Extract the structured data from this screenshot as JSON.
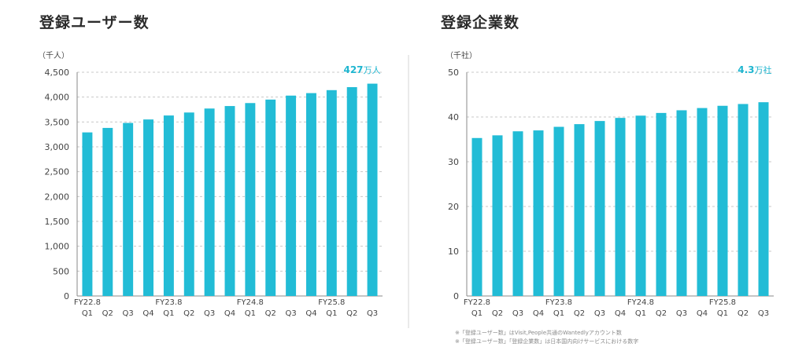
{
  "colors": {
    "bar": "#22bcd6",
    "annotation": "#1fb6d0",
    "grid": "#c8c8c8",
    "axis": "#888888"
  },
  "notes": [
    "※「登録ユーザー数」はVisit,People共通のWantedlyアカウント数",
    "※「登録ユーザー数」「登録企業数」は日本国内向けサービスにおける数字"
  ],
  "chart_data": [
    {
      "type": "bar",
      "title": "登録ユーザー数",
      "unit_label": "（千人）",
      "categories": [
        "Q1",
        "Q2",
        "Q3",
        "Q4",
        "Q1",
        "Q2",
        "Q3",
        "Q4",
        "Q1",
        "Q2",
        "Q3",
        "Q4",
        "Q1",
        "Q2",
        "Q3"
      ],
      "fy_labels": [
        "FY22.8",
        "",
        "",
        "",
        "FY23.8",
        "",
        "",
        "",
        "FY24.8",
        "",
        "",
        "",
        "FY25.8",
        "",
        ""
      ],
      "values": [
        3290,
        3380,
        3480,
        3550,
        3630,
        3690,
        3770,
        3820,
        3880,
        3950,
        4030,
        4080,
        4140,
        4200,
        4270
      ],
      "ylim": [
        0,
        4500
      ],
      "yticks": [
        "0",
        "500",
        "1,000",
        "1,500",
        "2,000",
        "2,500",
        "3,000",
        "3,500",
        "4,000",
        "4,500"
      ],
      "grid": "dashed horizontal",
      "annotation": {
        "value": "427",
        "unit": "万人"
      }
    },
    {
      "type": "bar",
      "title": "登録企業数",
      "unit_label": "（千社）",
      "categories": [
        "Q1",
        "Q2",
        "Q3",
        "Q4",
        "Q1",
        "Q2",
        "Q3",
        "Q4",
        "Q1",
        "Q2",
        "Q3",
        "Q4",
        "Q1",
        "Q2",
        "Q3"
      ],
      "fy_labels": [
        "FY22.8",
        "",
        "",
        "",
        "FY23.8",
        "",
        "",
        "",
        "FY24.8",
        "",
        "",
        "",
        "FY25.8",
        "",
        ""
      ],
      "values": [
        35.3,
        35.9,
        36.8,
        37.0,
        37.8,
        38.4,
        39.1,
        39.8,
        40.3,
        40.9,
        41.5,
        42.0,
        42.5,
        42.9,
        43.3
      ],
      "ylim": [
        0,
        50
      ],
      "yticks": [
        "0",
        "10",
        "20",
        "30",
        "40",
        "50"
      ],
      "grid": "dashed horizontal",
      "annotation": {
        "value": "4.3",
        "unit": "万社"
      }
    }
  ]
}
